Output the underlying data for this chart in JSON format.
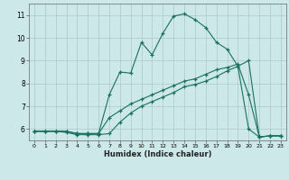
{
  "xlabel": "Humidex (Indice chaleur)",
  "bg_color": "#cde8e8",
  "line_color": "#1a7060",
  "grid_color": "#adc8c8",
  "xlim": [
    -0.5,
    23.5
  ],
  "ylim": [
    5.5,
    11.5
  ],
  "yticks": [
    6,
    7,
    8,
    9,
    10,
    11
  ],
  "xticks": [
    0,
    1,
    2,
    3,
    4,
    5,
    6,
    7,
    8,
    9,
    10,
    11,
    12,
    13,
    14,
    15,
    16,
    17,
    18,
    19,
    20,
    21,
    22,
    23
  ],
  "line_top": {
    "x": [
      0,
      1,
      2,
      3,
      4,
      5,
      6,
      7,
      8,
      9,
      10,
      11,
      12,
      13,
      14,
      15,
      16,
      17,
      18,
      19,
      20,
      21,
      22,
      23
    ],
    "y": [
      5.9,
      5.9,
      5.9,
      5.9,
      5.8,
      5.8,
      5.8,
      7.5,
      8.5,
      8.45,
      9.8,
      9.25,
      10.2,
      10.95,
      11.05,
      10.8,
      10.45,
      9.8,
      9.5,
      8.75,
      6.0,
      5.65,
      5.7,
      5.7
    ]
  },
  "line_mid": {
    "x": [
      0,
      1,
      2,
      3,
      4,
      5,
      6,
      7,
      8,
      9,
      10,
      11,
      12,
      13,
      14,
      15,
      16,
      17,
      18,
      19,
      20,
      21,
      22,
      23
    ],
    "y": [
      5.9,
      5.9,
      5.9,
      5.9,
      5.8,
      5.8,
      5.8,
      6.5,
      6.8,
      7.1,
      7.3,
      7.5,
      7.7,
      7.9,
      8.1,
      8.2,
      8.4,
      8.6,
      8.7,
      8.85,
      7.5,
      5.65,
      5.7,
      5.7
    ]
  },
  "line_bot": {
    "x": [
      0,
      1,
      2,
      3,
      4,
      5,
      6,
      7,
      8,
      9,
      10,
      11,
      12,
      13,
      14,
      15,
      16,
      17,
      18,
      19,
      20,
      21,
      22,
      23
    ],
    "y": [
      5.9,
      5.9,
      5.9,
      5.85,
      5.75,
      5.75,
      5.75,
      5.8,
      6.3,
      6.7,
      7.0,
      7.2,
      7.4,
      7.6,
      7.85,
      7.95,
      8.1,
      8.3,
      8.55,
      8.75,
      9.0,
      5.65,
      5.7,
      5.7
    ]
  }
}
